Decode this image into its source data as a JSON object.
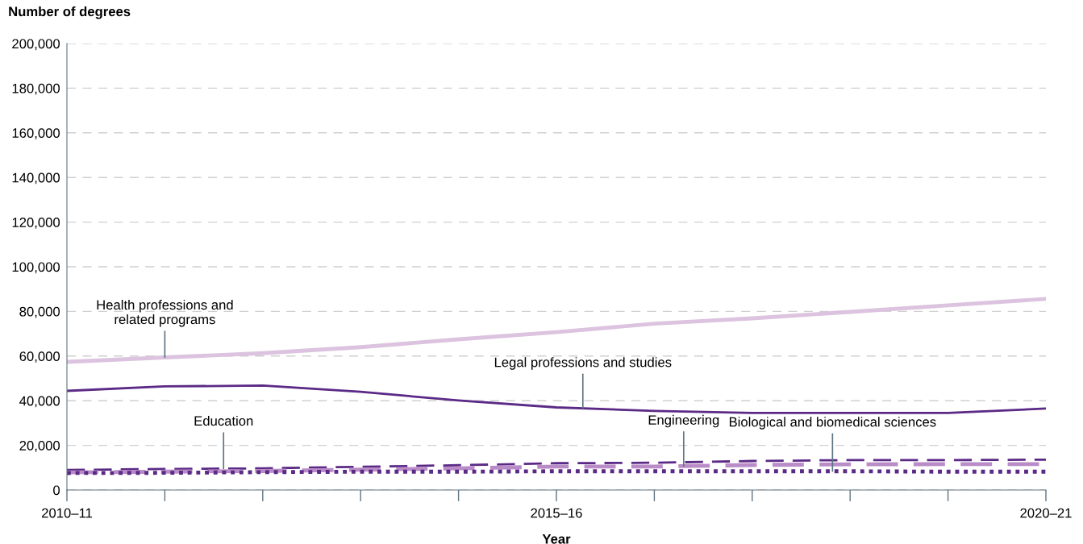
{
  "chart_data": {
    "type": "line",
    "ylabel": "Number of degrees",
    "xlabel": "Year",
    "categories": [
      "2010–11",
      null,
      null,
      null,
      null,
      "2015–16",
      null,
      null,
      null,
      null,
      "2020–21"
    ],
    "ylim": [
      0,
      200000
    ],
    "yticks": [
      0,
      {
        "value": 20000,
        "label": "20,000"
      },
      {
        "value": 40000,
        "label": "40,000"
      },
      {
        "value": 60000,
        "label": "60,000"
      },
      {
        "value": 80000,
        "label": "80,000"
      },
      {
        "value": 100000,
        "label": "100,000"
      },
      {
        "value": 120000,
        "label": "120,000"
      },
      {
        "value": 140000,
        "label": "140,000"
      },
      {
        "value": 160000,
        "label": "160,000"
      },
      {
        "value": 180000,
        "label": "180,000"
      },
      {
        "value": 200000,
        "label": "200,000"
      }
    ],
    "grid": "y",
    "series": [
      {
        "name": "Health professions and\nrelated programs",
        "color": "#dcc3df",
        "line_style": "solid",
        "values": [
          57400,
          59400,
          61300,
          64000,
          67500,
          70700,
          74500,
          76900,
          79800,
          82700,
          85600
        ]
      },
      {
        "name": "Legal professions and studies",
        "color": "#5b2a86",
        "line_style": "solid",
        "values": [
          44400,
          46400,
          46800,
          44000,
          40100,
          37000,
          35400,
          34500,
          34500,
          34500,
          36500
        ]
      },
      {
        "name": "Education",
        "color": "#5b2a86",
        "line_style": "dashed",
        "values": [
          9000,
          9400,
          9700,
          10400,
          11100,
          12000,
          12200,
          13000,
          13400,
          13400,
          13600
        ]
      },
      {
        "name": "Engineering",
        "color": "#b98cc8",
        "line_style": "dashed",
        "values": [
          7900,
          8200,
          8500,
          9100,
          9700,
          10500,
          10500,
          11200,
          11500,
          11600,
          11600
        ]
      },
      {
        "name": "Biological and biomedical sciences",
        "color": "#5b2a86",
        "line_style": "dotted",
        "values": [
          7600,
          7700,
          8000,
          8200,
          8200,
          8400,
          8400,
          8400,
          8400,
          8200,
          8200
        ]
      }
    ]
  }
}
